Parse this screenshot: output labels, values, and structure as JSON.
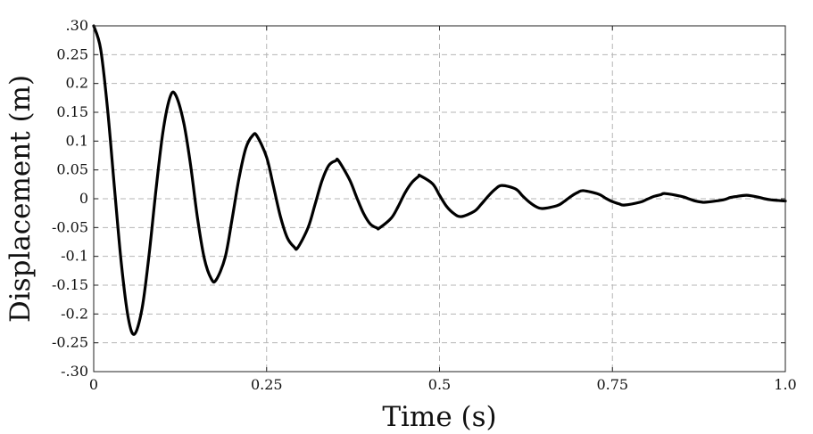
{
  "chart_data": {
    "type": "line",
    "title": "",
    "xlabel": "Time (s)",
    "ylabel": "Displacement (m)",
    "xlim": [
      0,
      1.0
    ],
    "ylim": [
      -0.3,
      0.3
    ],
    "grid": true,
    "x_ticks": [
      {
        "value": 0,
        "label": "0"
      },
      {
        "value": 0.25,
        "label": "0.25"
      },
      {
        "value": 0.5,
        "label": "0.5"
      },
      {
        "value": 0.75,
        "label": "0.75"
      },
      {
        "value": 1.0,
        "label": "1.0"
      }
    ],
    "y_ticks": [
      {
        "value": 0.3,
        "label": ".30"
      },
      {
        "value": 0.25,
        "label": "0.25"
      },
      {
        "value": 0.2,
        "label": "0.2"
      },
      {
        "value": 0.15,
        "label": "0.15"
      },
      {
        "value": 0.1,
        "label": "0.1"
      },
      {
        "value": 0.05,
        "label": "0.05"
      },
      {
        "value": 0,
        "label": "0"
      },
      {
        "value": -0.05,
        "label": "-0.05"
      },
      {
        "value": -0.1,
        "label": "-0.1"
      },
      {
        "value": -0.15,
        "label": "-0.15"
      },
      {
        "value": -0.2,
        "label": "-0.2"
      },
      {
        "value": -0.25,
        "label": "-0.25"
      },
      {
        "value": -0.3,
        "label": "-.30"
      }
    ],
    "series": [
      {
        "color": "#000000",
        "x": [
          0,
          0.01,
          0.02,
          0.03,
          0.04,
          0.05,
          0.059,
          0.07,
          0.08,
          0.09,
          0.1,
          0.11,
          0.118,
          0.13,
          0.14,
          0.15,
          0.16,
          0.17,
          0.177,
          0.19,
          0.2,
          0.21,
          0.22,
          0.23,
          0.236,
          0.25,
          0.26,
          0.27,
          0.28,
          0.29,
          0.295,
          0.31,
          0.32,
          0.33,
          0.34,
          0.35,
          0.354,
          0.37,
          0.38,
          0.39,
          0.4,
          0.41,
          0.413,
          0.43,
          0.44,
          0.45,
          0.46,
          0.47,
          0.472,
          0.49,
          0.5,
          0.51,
          0.52,
          0.531,
          0.55,
          0.56,
          0.57,
          0.58,
          0.59,
          0.61,
          0.62,
          0.63,
          0.64,
          0.649,
          0.67,
          0.68,
          0.69,
          0.7,
          0.708,
          0.73,
          0.74,
          0.75,
          0.76,
          0.767,
          0.79,
          0.8,
          0.81,
          0.82,
          0.826,
          0.85,
          0.86,
          0.87,
          0.88,
          0.885,
          0.91,
          0.92,
          0.93,
          0.944,
          0.96,
          0.97,
          0.98,
          0.99,
          1.0
        ],
        "y": [
          0.3,
          0.26,
          0.156,
          0.019,
          -0.113,
          -0.207,
          -0.235,
          -0.19,
          -0.098,
          0.015,
          0.115,
          0.175,
          0.181,
          0.133,
          0.059,
          -0.033,
          -0.104,
          -0.139,
          -0.141,
          -0.102,
          -0.036,
          0.035,
          0.088,
          0.11,
          0.109,
          0.072,
          0.021,
          -0.031,
          -0.068,
          -0.084,
          -0.085,
          -0.05,
          -0.01,
          0.031,
          0.058,
          0.066,
          0.066,
          0.033,
          0.003,
          -0.025,
          -0.044,
          -0.051,
          -0.051,
          -0.034,
          -0.014,
          0.01,
          0.028,
          0.039,
          0.04,
          0.026,
          0.006,
          -0.013,
          -0.025,
          -0.031,
          -0.022,
          -0.01,
          0.004,
          0.016,
          0.023,
          0.017,
          0.005,
          -0.006,
          -0.014,
          -0.017,
          -0.012,
          -0.005,
          0.004,
          0.011,
          0.014,
          0.008,
          0.001,
          -0.005,
          -0.009,
          -0.011,
          -0.006,
          -0.001,
          0.004,
          0.007,
          0.009,
          0.004,
          0.0,
          -0.004,
          -0.006,
          -0.006,
          -0.002,
          0.002,
          0.004,
          0.006,
          0.003,
          0.0,
          -0.002,
          -0.003,
          -0.004
        ]
      }
    ]
  }
}
